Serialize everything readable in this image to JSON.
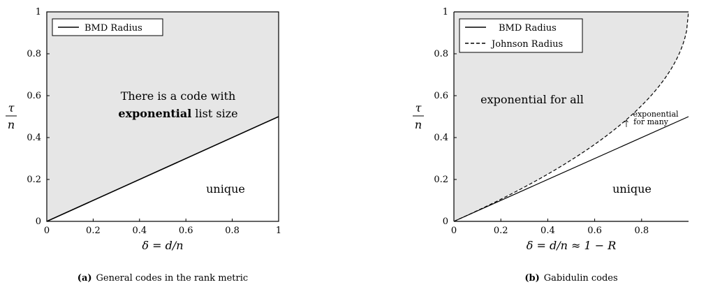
{
  "chart_data": [
    {
      "type": "line",
      "caption": {
        "tag": "(a)",
        "text": "General codes in the rank metric"
      },
      "xlabel": "δ = d/n",
      "ylabel": {
        "num": "τ",
        "den": "n"
      },
      "xlim": [
        0,
        1
      ],
      "ylim": [
        0,
        1
      ],
      "xticks": [
        "0",
        "0.2",
        "0.4",
        "0.6",
        "0.8",
        "1"
      ],
      "xtick_values": [
        0,
        0.2,
        0.4,
        0.6,
        0.8,
        1
      ],
      "yticks": [
        "0",
        "0.2",
        "0.4",
        "0.6",
        "0.8",
        "1"
      ],
      "ytick_values": [
        0,
        0.2,
        0.4,
        0.6,
        0.8,
        1
      ],
      "legend": {
        "position": "top-left",
        "entries": [
          {
            "label": "BMD Radius",
            "style": "solid"
          }
        ]
      },
      "series": [
        {
          "name": "BMD Radius",
          "style": "solid",
          "x": [
            0,
            1
          ],
          "y": [
            0,
            0.5
          ]
        }
      ],
      "shaded_region": {
        "color": "#e6e6e6",
        "description_bound": "above BMD Radius"
      },
      "annotations": {
        "region_top_line1": "There is a code with",
        "region_top_bold": "exponential",
        "region_top_rest": " list size",
        "region_bottom": "unique"
      }
    },
    {
      "type": "line",
      "caption": {
        "tag": "(b)",
        "text": "Gabidulin codes"
      },
      "xlabel": "δ = d/n ≈ 1 − R",
      "ylabel": {
        "num": "τ",
        "den": "n"
      },
      "xlim": [
        0,
        1
      ],
      "ylim": [
        0,
        1
      ],
      "xticks": [
        "0",
        "0.2",
        "0.4",
        "0.6",
        "0.8"
      ],
      "xtick_values": [
        0,
        0.2,
        0.4,
        0.6,
        0.8
      ],
      "yticks": [
        "0",
        "0.2",
        "0.4",
        "0.6",
        "0.8",
        "1"
      ],
      "ytick_values": [
        0,
        0.2,
        0.4,
        0.6,
        0.8,
        1
      ],
      "legend": {
        "position": "top-left",
        "entries": [
          {
            "label": "BMD Radius",
            "style": "solid"
          },
          {
            "label": "Johnson Radius",
            "style": "dashed"
          }
        ]
      },
      "series": [
        {
          "name": "BMD Radius",
          "style": "solid",
          "x": [
            0,
            1
          ],
          "y": [
            0,
            0.5
          ]
        },
        {
          "name": "Johnson Radius",
          "style": "dashed",
          "formula": "1 - sqrt(1 - delta)"
        }
      ],
      "shaded_region": {
        "color": "#e6e6e6",
        "description_bound": "above Johnson Radius"
      },
      "annotations": {
        "region_top": "exponential for all",
        "region_mid_line1": "exponential",
        "region_mid_line2": "for many",
        "region_bottom": "unique"
      }
    }
  ]
}
